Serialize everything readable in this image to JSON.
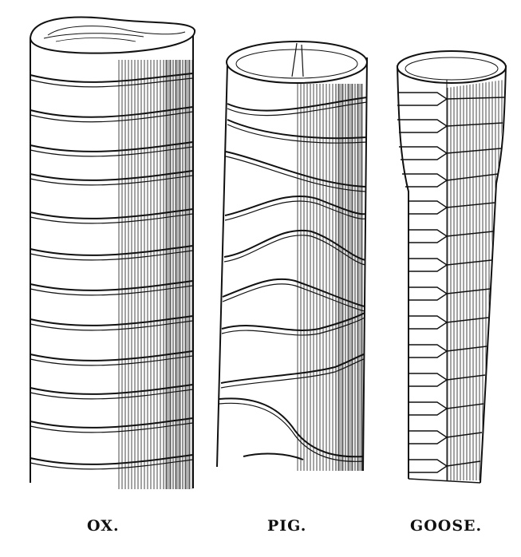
{
  "captions": {
    "ox": "OX.",
    "pig": "PIG.",
    "goose": "GOOSE."
  },
  "colors": {
    "ink": "#111111",
    "paper": "#ffffff"
  }
}
